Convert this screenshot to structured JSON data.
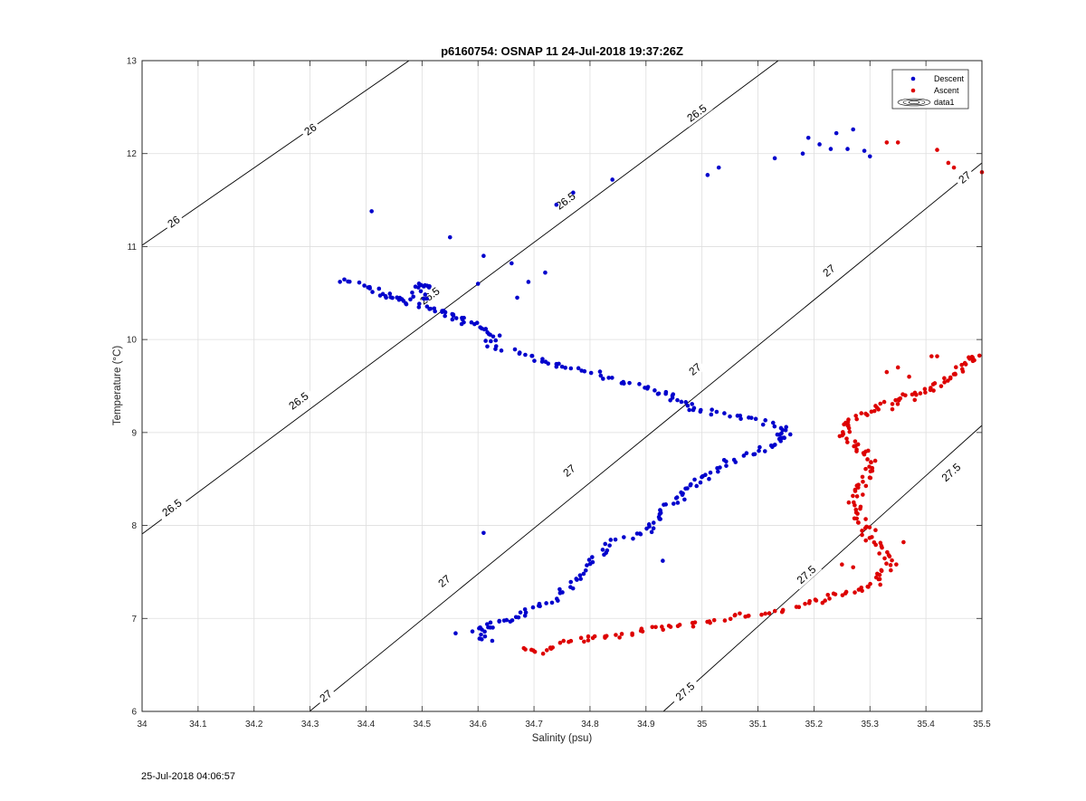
{
  "chart_data": {
    "type": "scatter",
    "title": "p6160754: OSNAP 11 24-Jul-2018 19:37:26Z",
    "xlabel": "Salinity (psu)",
    "ylabel": "Temperature (°C)",
    "xlim": [
      34,
      35.5
    ],
    "ylim": [
      6,
      13
    ],
    "xticks": [
      34,
      34.1,
      34.2,
      34.3,
      34.4,
      34.5,
      34.6,
      34.7,
      34.8,
      34.9,
      35,
      35.1,
      35.2,
      35.3,
      35.4,
      35.5
    ],
    "yticks": [
      6,
      7,
      8,
      9,
      10,
      11,
      12,
      13
    ],
    "xtick_labels": [
      "34",
      "34.1",
      "34.2",
      "34.3",
      "34.4",
      "34.5",
      "34.6",
      "34.7",
      "34.8",
      "34.9",
      "35",
      "35.1",
      "35.2",
      "35.3",
      "35.4",
      "35.5"
    ],
    "ytick_labels": [
      "6",
      "7",
      "8",
      "9",
      "10",
      "11",
      "12",
      "13"
    ],
    "grid": true,
    "legend_position": "top-right",
    "legend": [
      "Descent",
      "Ascent",
      "data1"
    ],
    "series": [
      {
        "name": "Descent",
        "color": "#0000cc",
        "path": [
          [
            34.35,
            10.63
          ],
          [
            34.4,
            10.58
          ],
          [
            34.43,
            10.48
          ],
          [
            34.45,
            10.45
          ],
          [
            34.47,
            10.4
          ],
          [
            34.5,
            10.62
          ],
          [
            34.51,
            10.55
          ],
          [
            34.5,
            10.35
          ],
          [
            34.53,
            10.3
          ],
          [
            34.56,
            10.25
          ],
          [
            34.57,
            10.2
          ],
          [
            34.6,
            10.15
          ],
          [
            34.63,
            10.05
          ],
          [
            34.62,
            9.95
          ],
          [
            34.68,
            9.85
          ],
          [
            34.72,
            9.75
          ],
          [
            34.75,
            9.72
          ],
          [
            34.8,
            9.65
          ],
          [
            34.85,
            9.55
          ],
          [
            34.9,
            9.47
          ],
          [
            34.94,
            9.4
          ],
          [
            34.96,
            9.33
          ],
          [
            34.99,
            9.25
          ],
          [
            35.04,
            9.2
          ],
          [
            35.09,
            9.15
          ],
          [
            35.14,
            9.05
          ],
          [
            35.15,
            8.98
          ],
          [
            35.13,
            8.9
          ],
          [
            35.11,
            8.82
          ],
          [
            35.06,
            8.72
          ],
          [
            35.03,
            8.62
          ],
          [
            35.0,
            8.5
          ],
          [
            34.98,
            8.4
          ],
          [
            34.96,
            8.3
          ],
          [
            34.93,
            8.18
          ],
          [
            34.92,
            8.05
          ],
          [
            34.9,
            7.93
          ],
          [
            34.85,
            7.85
          ],
          [
            34.82,
            7.72
          ],
          [
            34.79,
            7.55
          ],
          [
            34.77,
            7.4
          ],
          [
            34.75,
            7.28
          ],
          [
            34.72,
            7.15
          ],
          [
            34.68,
            7.05
          ],
          [
            34.65,
            6.98
          ],
          [
            34.62,
            6.92
          ],
          [
            34.6,
            6.85
          ],
          [
            34.62,
            6.75
          ]
        ],
        "extra_points": [
          [
            34.41,
            11.38
          ],
          [
            34.55,
            11.1
          ],
          [
            34.61,
            10.9
          ],
          [
            34.66,
            10.82
          ],
          [
            34.72,
            10.72
          ],
          [
            34.69,
            10.62
          ],
          [
            34.67,
            10.45
          ],
          [
            34.6,
            10.6
          ],
          [
            34.74,
            11.45
          ],
          [
            34.77,
            11.58
          ],
          [
            34.84,
            11.72
          ],
          [
            35.01,
            11.77
          ],
          [
            35.03,
            11.85
          ],
          [
            35.13,
            11.95
          ],
          [
            35.18,
            12.0
          ],
          [
            35.19,
            12.17
          ],
          [
            35.21,
            12.1
          ],
          [
            35.24,
            12.22
          ],
          [
            35.26,
            12.05
          ],
          [
            35.27,
            12.26
          ],
          [
            35.29,
            12.03
          ],
          [
            35.3,
            11.97
          ],
          [
            35.23,
            12.05
          ],
          [
            34.61,
            7.92
          ],
          [
            34.93,
            7.62
          ],
          [
            34.56,
            6.84
          ],
          [
            34.59,
            6.86
          ]
        ]
      },
      {
        "name": "Ascent",
        "color": "#dd0000",
        "path": [
          [
            34.68,
            6.68
          ],
          [
            34.72,
            6.64
          ],
          [
            34.76,
            6.75
          ],
          [
            34.8,
            6.8
          ],
          [
            34.85,
            6.8
          ],
          [
            34.9,
            6.88
          ],
          [
            34.95,
            6.92
          ],
          [
            35.0,
            6.95
          ],
          [
            35.05,
            7.02
          ],
          [
            35.1,
            7.05
          ],
          [
            35.15,
            7.1
          ],
          [
            35.2,
            7.18
          ],
          [
            35.24,
            7.25
          ],
          [
            35.28,
            7.3
          ],
          [
            35.31,
            7.38
          ],
          [
            35.33,
            7.5
          ],
          [
            35.34,
            7.62
          ],
          [
            35.32,
            7.75
          ],
          [
            35.3,
            7.88
          ],
          [
            35.29,
            8.0
          ],
          [
            35.28,
            8.12
          ],
          [
            35.27,
            8.25
          ],
          [
            35.28,
            8.38
          ],
          [
            35.29,
            8.5
          ],
          [
            35.3,
            8.62
          ],
          [
            35.3,
            8.75
          ],
          [
            35.28,
            8.85
          ],
          [
            35.26,
            8.95
          ],
          [
            35.25,
            9.05
          ],
          [
            35.26,
            9.15
          ],
          [
            35.3,
            9.22
          ],
          [
            35.33,
            9.3
          ],
          [
            35.36,
            9.38
          ],
          [
            35.39,
            9.42
          ],
          [
            35.42,
            9.5
          ],
          [
            35.44,
            9.58
          ],
          [
            35.46,
            9.68
          ],
          [
            35.48,
            9.78
          ],
          [
            35.49,
            9.85
          ]
        ],
        "extra_points": [
          [
            35.33,
            12.12
          ],
          [
            35.35,
            12.12
          ],
          [
            35.42,
            12.04
          ],
          [
            35.44,
            11.9
          ],
          [
            35.45,
            11.85
          ],
          [
            35.5,
            11.8
          ],
          [
            35.33,
            9.65
          ],
          [
            35.35,
            9.7
          ],
          [
            35.37,
            9.6
          ],
          [
            35.41,
            9.82
          ],
          [
            35.42,
            9.82
          ],
          [
            35.34,
            9.25
          ],
          [
            35.38,
            9.35
          ],
          [
            35.25,
            7.58
          ],
          [
            35.27,
            7.55
          ],
          [
            35.36,
            7.82
          ],
          [
            35.31,
            7.95
          ]
        ]
      }
    ],
    "density_contours": [
      {
        "label": "26",
        "color": "#000000"
      },
      {
        "label": "26.5",
        "color": "#000000"
      },
      {
        "label": "27",
        "color": "#000000"
      },
      {
        "label": "27.5",
        "color": "#000000"
      }
    ]
  },
  "footer": {
    "timestamp": "25-Jul-2018 04:06:57"
  }
}
